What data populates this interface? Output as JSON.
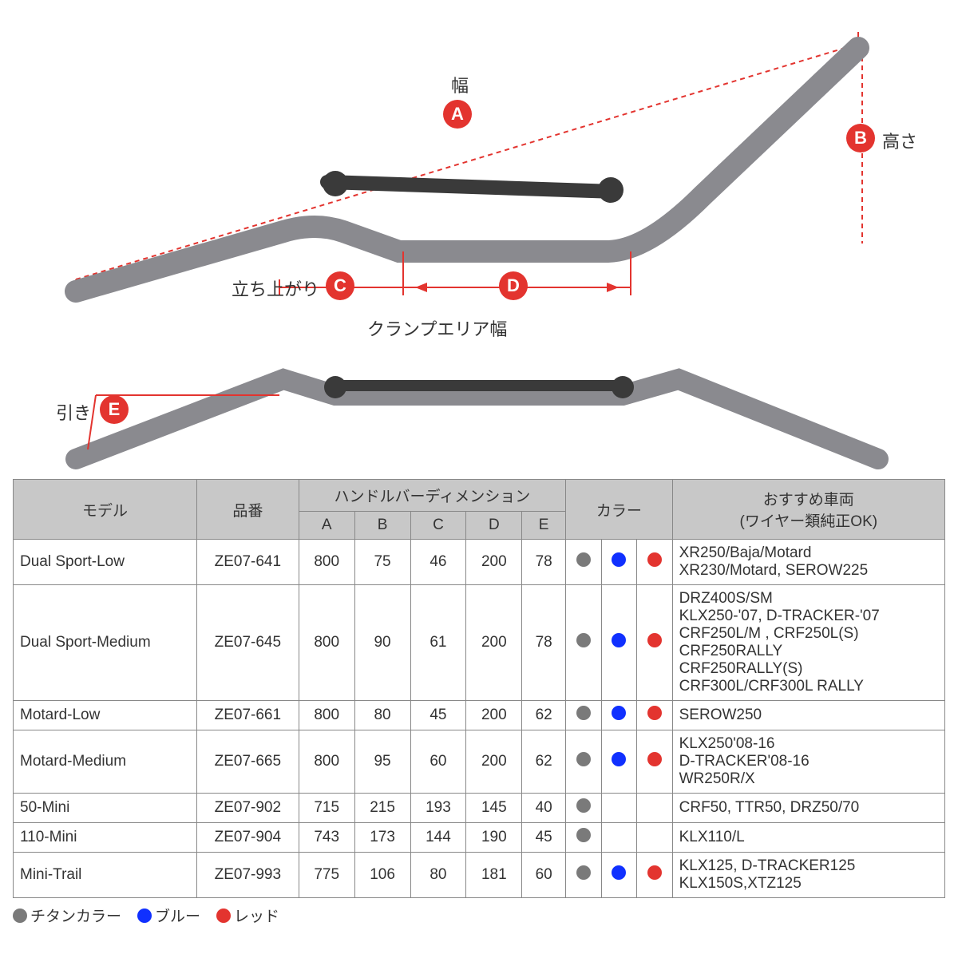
{
  "diagram": {
    "badge_color": "#e3342f",
    "dimension_line_color": "#e3342f",
    "handlebar_color": "#8a8a8f",
    "labels": {
      "A": "幅",
      "B": "高さ",
      "C": "立ち上がり",
      "D": "クランプエリア幅",
      "E": "引き"
    },
    "badges": [
      "A",
      "B",
      "C",
      "D",
      "E"
    ]
  },
  "table": {
    "headers": {
      "model": "モデル",
      "part_no": "品番",
      "dimensions_group": "ハンドルバーディメンション",
      "dim_cols": [
        "A",
        "B",
        "C",
        "D",
        "E"
      ],
      "color": "カラー",
      "vehicles": "おすすめ車両",
      "vehicles_sub": "(ワイヤー類純正OK)"
    },
    "color_hex": {
      "titanium": "#7a7a7a",
      "blue": "#1030ff",
      "red": "#e3342f"
    },
    "rows": [
      {
        "model": "Dual Sport-Low",
        "part": "ZE07-641",
        "dims": [
          "800",
          "75",
          "46",
          "200",
          "78"
        ],
        "colors": [
          "titanium",
          "blue",
          "red"
        ],
        "vehicles": "XR250/Baja/Motard\nXR230/Motard, SEROW225"
      },
      {
        "model": "Dual Sport-Medium",
        "part": "ZE07-645",
        "dims": [
          "800",
          "90",
          "61",
          "200",
          "78"
        ],
        "colors": [
          "titanium",
          "blue",
          "red"
        ],
        "vehicles": "DRZ400S/SM\nKLX250-'07, D-TRACKER-'07\nCRF250L/M , CRF250L(S)\nCRF250RALLY\nCRF250RALLY(S)\nCRF300L/CRF300L RALLY"
      },
      {
        "model": "Motard-Low",
        "part": "ZE07-661",
        "dims": [
          "800",
          "80",
          "45",
          "200",
          "62"
        ],
        "colors": [
          "titanium",
          "blue",
          "red"
        ],
        "vehicles": "SEROW250"
      },
      {
        "model": "Motard-Medium",
        "part": "ZE07-665",
        "dims": [
          "800",
          "95",
          "60",
          "200",
          "62"
        ],
        "colors": [
          "titanium",
          "blue",
          "red"
        ],
        "vehicles": "KLX250'08-16\nD-TRACKER'08-16\nWR250R/X"
      },
      {
        "model": "50-Mini",
        "part": "ZE07-902",
        "dims": [
          "715",
          "215",
          "193",
          "145",
          "40"
        ],
        "colors": [
          "titanium"
        ],
        "vehicles": "CRF50, TTR50, DRZ50/70"
      },
      {
        "model": "110-Mini",
        "part": "ZE07-904",
        "dims": [
          "743",
          "173",
          "144",
          "190",
          "45"
        ],
        "colors": [
          "titanium"
        ],
        "vehicles": "KLX110/L"
      },
      {
        "model": "Mini-Trail",
        "part": "ZE07-993",
        "dims": [
          "775",
          "106",
          "80",
          "181",
          "60"
        ],
        "colors": [
          "titanium",
          "blue",
          "red"
        ],
        "vehicles": "KLX125, D-TRACKER125\nKLX150S,XTZ125"
      }
    ]
  },
  "legend": [
    {
      "color": "titanium",
      "label": "チタンカラー"
    },
    {
      "color": "blue",
      "label": "ブルー"
    },
    {
      "color": "red",
      "label": "レッド"
    }
  ]
}
